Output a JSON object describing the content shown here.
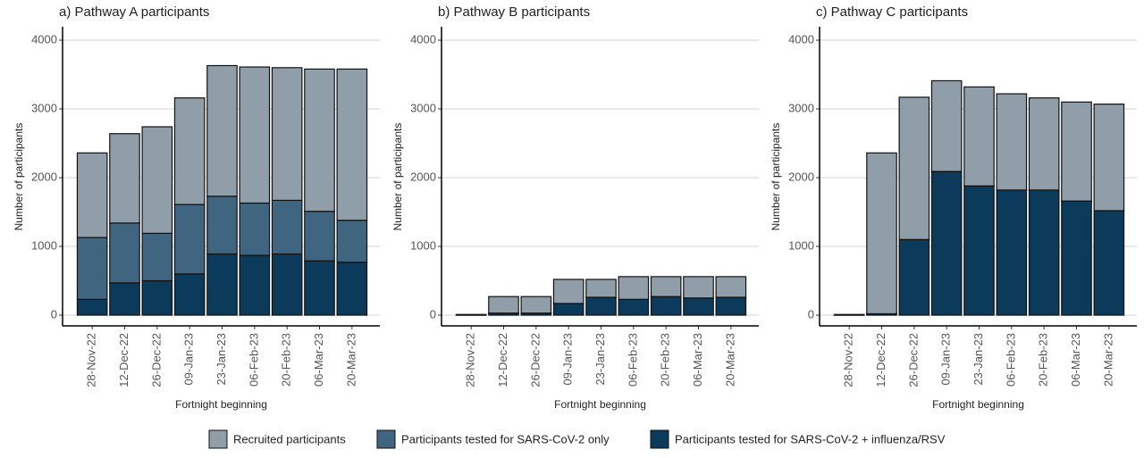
{
  "chart_data": [
    {
      "type": "stacked-bar",
      "title": "a) Pathway A participants",
      "x_label": "Fortnight beginning",
      "y_label": "Number of participants",
      "categories": [
        "28-Nov-22",
        "12-Dec-22",
        "26-Dec-22",
        "09-Jan-23",
        "23-Jan-23",
        "06-Feb-23",
        "20-Feb-23",
        "06-Mar-23",
        "20-Mar-23"
      ],
      "ylim": [
        0,
        4000
      ],
      "yticks": [
        0,
        1000,
        2000,
        3000,
        4000
      ],
      "grid": true,
      "series": [
        {
          "name": "Participants tested for SARS-CoV-2 + influenza/RSV",
          "color": "#0b3a5b",
          "values": [
            230,
            470,
            500,
            600,
            890,
            870,
            890,
            790,
            770
          ]
        },
        {
          "name": "Participants tested for SARS-CoV-2 only",
          "color": "#406581",
          "values": [
            900,
            870,
            690,
            1010,
            840,
            760,
            780,
            720,
            610
          ]
        },
        {
          "name": "Recruited participants",
          "color": "#8f9ea8",
          "values": [
            1230,
            1300,
            1550,
            1550,
            1900,
            1980,
            1930,
            2070,
            2200
          ]
        }
      ]
    },
    {
      "type": "stacked-bar",
      "title": "b) Pathway B participants",
      "x_label": "Fortnight beginning",
      "y_label": "Number of participants",
      "categories": [
        "28-Nov-22",
        "12-Dec-22",
        "26-Dec-22",
        "09-Jan-23",
        "23-Jan-23",
        "06-Feb-23",
        "20-Feb-23",
        "06-Mar-23",
        "20-Mar-23"
      ],
      "ylim": [
        0,
        4000
      ],
      "yticks": [
        0,
        1000,
        2000,
        3000,
        4000
      ],
      "grid": true,
      "series": [
        {
          "name": "Participants tested for SARS-CoV-2 + influenza/RSV",
          "color": "#0b3a5b",
          "values": [
            0,
            30,
            30,
            170,
            260,
            230,
            270,
            250,
            260
          ]
        },
        {
          "name": "Participants tested for SARS-CoV-2 only",
          "color": "#406581",
          "values": [
            0,
            0,
            0,
            0,
            0,
            0,
            0,
            0,
            0
          ]
        },
        {
          "name": "Recruited participants",
          "color": "#8f9ea8",
          "values": [
            10,
            240,
            240,
            350,
            260,
            330,
            290,
            310,
            300
          ]
        }
      ]
    },
    {
      "type": "stacked-bar",
      "title": "c) Pathway C participants",
      "x_label": "Fortnight beginning",
      "y_label": "Number of participants",
      "categories": [
        "28-Nov-22",
        "12-Dec-22",
        "26-Dec-22",
        "09-Jan-23",
        "23-Jan-23",
        "06-Feb-23",
        "20-Feb-23",
        "06-Mar-23",
        "20-Mar-23"
      ],
      "ylim": [
        0,
        4000
      ],
      "yticks": [
        0,
        1000,
        2000,
        3000,
        4000
      ],
      "grid": true,
      "series": [
        {
          "name": "Participants tested for SARS-CoV-2 + influenza/RSV",
          "color": "#0b3a5b",
          "values": [
            0,
            20,
            1100,
            2090,
            1880,
            1820,
            1820,
            1660,
            1520
          ]
        },
        {
          "name": "Participants tested for SARS-CoV-2 only",
          "color": "#406581",
          "values": [
            0,
            0,
            0,
            0,
            0,
            0,
            0,
            0,
            0
          ]
        },
        {
          "name": "Recruited participants",
          "color": "#8f9ea8",
          "values": [
            10,
            2340,
            2070,
            1320,
            1440,
            1400,
            1340,
            1440,
            1550
          ]
        }
      ]
    }
  ]
}
